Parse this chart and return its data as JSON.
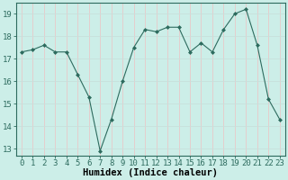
{
  "x": [
    0,
    1,
    2,
    3,
    4,
    5,
    6,
    7,
    8,
    9,
    10,
    11,
    12,
    13,
    14,
    15,
    16,
    17,
    18,
    19,
    20,
    21,
    22,
    23
  ],
  "y": [
    17.3,
    17.4,
    17.6,
    17.3,
    17.3,
    16.3,
    15.3,
    12.9,
    14.3,
    16.0,
    17.5,
    18.3,
    18.2,
    18.4,
    18.4,
    17.3,
    17.7,
    17.3,
    18.3,
    19.0,
    19.2,
    17.6,
    15.2,
    14.3
  ],
  "bg_color": "#cceee8",
  "line_color": "#2d6b5e",
  "grid_color": "#e8c8c8",
  "grid_color2": "#c8e0dc",
  "xlabel": "Humidex (Indice chaleur)",
  "ylim_min": 12.7,
  "ylim_max": 19.5,
  "xlim_min": -0.5,
  "xlim_max": 23.5,
  "yticks": [
    13,
    14,
    15,
    16,
    17,
    18,
    19
  ],
  "xticks": [
    0,
    1,
    2,
    3,
    4,
    5,
    6,
    7,
    8,
    9,
    10,
    11,
    12,
    13,
    14,
    15,
    16,
    17,
    18,
    19,
    20,
    21,
    22,
    23
  ],
  "xlabel_fontsize": 7.5,
  "tick_fontsize": 6.5
}
